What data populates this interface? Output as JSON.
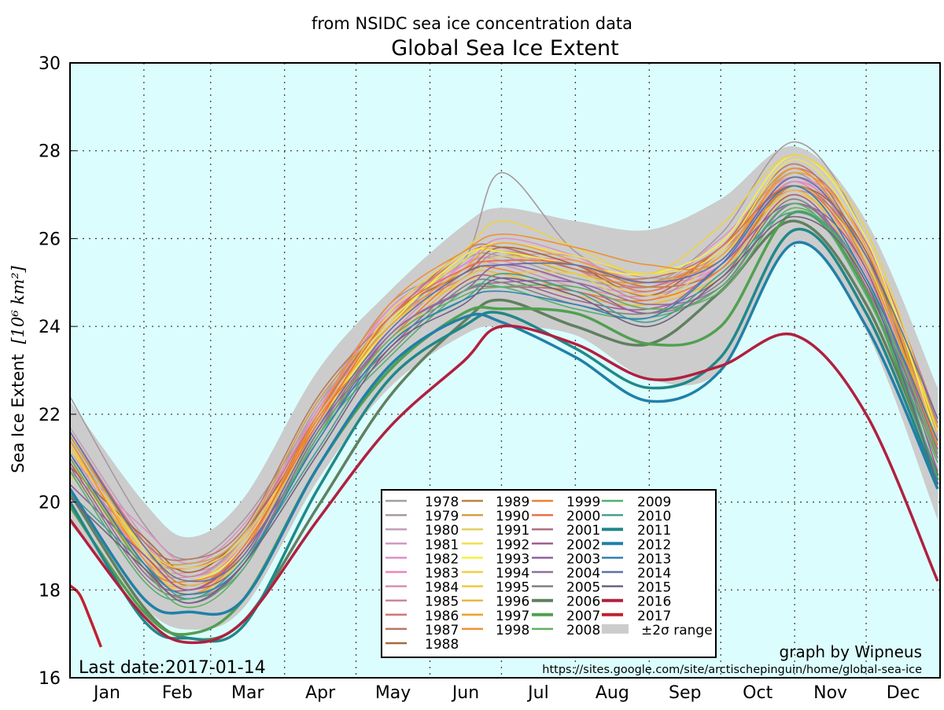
{
  "chart_data": {
    "type": "line",
    "title": "Global Sea Ice Extent",
    "subtitle": "from NSIDC sea ice concentration data",
    "ylabel": "Sea Ice Extent",
    "ylabel_unit": "[10⁶ km²]",
    "xlabel": "",
    "x_tick_labels": [
      "Jan",
      "Feb",
      "Mar",
      "Apr",
      "May",
      "Jun",
      "Jul",
      "Aug",
      "Sep",
      "Oct",
      "Nov",
      "Dec"
    ],
    "y_ticks": [
      16,
      18,
      20,
      22,
      24,
      26,
      28,
      30
    ],
    "ylim": [
      16,
      30
    ],
    "grid": true,
    "legend_position": "lower-center-right",
    "background_color": "#dcfdfd",
    "annotation_last_date": "Last date:2017-01-14",
    "credit": "graph by Wipneus",
    "source_url": "https://sites.google.com/site/arctischepinguin/home/global-sea-ice",
    "x": [
      "01-01",
      "02-01",
      "02-20",
      "03-15",
      "04-15",
      "05-15",
      "06-15",
      "07-01",
      "08-01",
      "09-01",
      "10-01",
      "11-01",
      "12-01",
      "12-31"
    ],
    "sigma_band": {
      "name": "±2σ range",
      "color": "#cccccc",
      "upper": [
        22.3,
        20.0,
        19.2,
        20.1,
        23.0,
        24.8,
        26.3,
        26.7,
        26.4,
        26.2,
        26.9,
        28.1,
        26.4,
        22.6
      ],
      "lower": [
        19.5,
        17.6,
        17.1,
        17.6,
        20.5,
        22.6,
        23.8,
        24.0,
        23.8,
        22.8,
        23.0,
        25.9,
        23.9,
        19.6
      ]
    },
    "series": [
      {
        "name": "1978",
        "color": "#a0a0a0",
        "values": [
          21.4,
          18.9,
          18.5,
          19.2,
          22.2,
          24.0,
          25.5,
          25.6,
          25.1,
          24.9,
          25.6,
          27.5,
          25.4,
          21.6
        ]
      },
      {
        "name": "1979",
        "color": "#a8989f",
        "values": [
          22.4,
          19.5,
          18.7,
          19.6,
          22.1,
          24.5,
          25.5,
          27.5,
          25.7,
          25.0,
          26.1,
          28.2,
          26.0,
          21.4
        ]
      },
      {
        "name": "1980",
        "color": "#c0a0b4",
        "values": [
          21.7,
          19.2,
          18.3,
          19.2,
          22.2,
          24.4,
          25.4,
          25.6,
          25.6,
          25.1,
          25.5,
          27.4,
          25.7,
          21.8
        ]
      },
      {
        "name": "1981",
        "color": "#d098c4",
        "values": [
          21.3,
          18.8,
          18.4,
          19.1,
          22.1,
          23.9,
          25.4,
          25.5,
          25.0,
          24.8,
          25.5,
          27.4,
          25.3,
          21.5
        ]
      },
      {
        "name": "1982",
        "color": "#e090c4",
        "values": [
          21.0,
          19.4,
          18.6,
          19.5,
          22.0,
          24.4,
          25.4,
          26.0,
          25.6,
          24.9,
          26.0,
          27.4,
          25.9,
          21.3
        ]
      },
      {
        "name": "1983",
        "color": "#e888c0",
        "values": [
          21.6,
          19.1,
          18.2,
          19.1,
          22.1,
          24.3,
          25.3,
          25.5,
          25.5,
          25.0,
          25.4,
          27.3,
          25.6,
          21.7
        ]
      },
      {
        "name": "1984",
        "color": "#d890b0",
        "values": [
          21.2,
          18.7,
          18.3,
          19.0,
          22.0,
          23.8,
          25.3,
          25.4,
          24.9,
          24.7,
          25.4,
          27.3,
          25.2,
          21.4
        ]
      },
      {
        "name": "1985",
        "color": "#c88898",
        "values": [
          20.7,
          19.1,
          18.3,
          19.2,
          21.7,
          24.1,
          25.1,
          25.7,
          25.3,
          24.6,
          25.7,
          27.1,
          25.6,
          21.0
        ]
      },
      {
        "name": "1986",
        "color": "#d07878",
        "values": [
          21.5,
          19.0,
          18.5,
          19.3,
          22.0,
          24.2,
          25.6,
          25.8,
          25.3,
          24.9,
          25.8,
          27.6,
          25.9,
          21.9
        ]
      },
      {
        "name": "1987",
        "color": "#b87860",
        "values": [
          21.6,
          19.1,
          18.7,
          19.4,
          22.4,
          24.2,
          25.7,
          25.8,
          25.3,
          25.1,
          25.8,
          27.7,
          25.6,
          21.8
        ]
      },
      {
        "name": "1988",
        "color": "#a86838",
        "values": [
          20.8,
          19.2,
          18.4,
          19.3,
          21.8,
          24.2,
          25.2,
          25.8,
          25.4,
          24.7,
          25.8,
          27.2,
          25.7,
          21.1
        ]
      },
      {
        "name": "1989",
        "color": "#c08040",
        "values": [
          21.5,
          19.0,
          18.1,
          19.0,
          22.0,
          24.2,
          25.2,
          25.4,
          25.4,
          24.9,
          25.3,
          27.2,
          25.5,
          21.6
        ]
      },
      {
        "name": "1990",
        "color": "#d0a040",
        "values": [
          21.5,
          19.0,
          18.6,
          19.3,
          22.3,
          24.1,
          25.6,
          25.7,
          25.2,
          25.0,
          25.7,
          27.6,
          25.5,
          21.7
        ]
      },
      {
        "name": "1991",
        "color": "#e0d060",
        "values": [
          20.6,
          19.0,
          18.2,
          19.1,
          21.6,
          24.0,
          25.0,
          25.6,
          25.2,
          24.5,
          25.6,
          27.0,
          25.5,
          20.9
        ]
      },
      {
        "name": "1992",
        "color": "#f0e050",
        "values": [
          21.3,
          18.9,
          18.0,
          19.0,
          21.9,
          24.1,
          25.5,
          25.9,
          25.6,
          25.2,
          25.7,
          27.8,
          25.8,
          21.6
        ]
      },
      {
        "name": "1993",
        "color": "#f8f040",
        "values": [
          21.0,
          18.6,
          18.2,
          19.0,
          21.8,
          24.0,
          25.6,
          25.7,
          25.4,
          25.2,
          25.9,
          27.9,
          26.0,
          21.4
        ]
      },
      {
        "name": "1994",
        "color": "#f0d040",
        "values": [
          21.2,
          19.0,
          18.5,
          19.2,
          21.8,
          24.3,
          25.7,
          26.4,
          25.8,
          25.2,
          26.3,
          27.9,
          26.2,
          21.6
        ]
      },
      {
        "name": "1995",
        "color": "#f0c840",
        "values": [
          21.3,
          18.8,
          17.9,
          18.8,
          21.8,
          24.0,
          25.0,
          25.2,
          25.2,
          24.7,
          25.1,
          27.0,
          25.3,
          21.4
        ]
      },
      {
        "name": "1996",
        "color": "#e8b848",
        "values": [
          21.0,
          18.5,
          18.1,
          18.8,
          21.8,
          23.6,
          25.1,
          25.2,
          24.7,
          24.5,
          25.2,
          27.1,
          25.0,
          21.2
        ]
      },
      {
        "name": "1997",
        "color": "#f0a030",
        "values": [
          20.9,
          18.8,
          18.0,
          18.9,
          21.9,
          24.0,
          25.3,
          25.9,
          25.5,
          25.0,
          25.6,
          27.5,
          25.8,
          21.2
        ]
      },
      {
        "name": "1998",
        "color": "#f09030",
        "values": [
          21.4,
          18.7,
          17.9,
          18.9,
          22.0,
          24.5,
          25.7,
          26.1,
          25.8,
          25.4,
          25.5,
          27.6,
          25.4,
          21.3
        ]
      },
      {
        "name": "1999",
        "color": "#f08030",
        "values": [
          21.1,
          18.6,
          18.2,
          18.9,
          21.9,
          23.7,
          25.2,
          25.3,
          24.8,
          24.6,
          25.3,
          27.2,
          25.1,
          21.3
        ]
      },
      {
        "name": "2000",
        "color": "#e87048",
        "values": [
          20.4,
          18.8,
          18.0,
          19.0,
          21.8,
          24.2,
          25.3,
          25.5,
          25.4,
          24.8,
          25.8,
          27.2,
          25.3,
          20.7
        ]
      },
      {
        "name": "2001",
        "color": "#b07080",
        "values": [
          21.0,
          18.5,
          17.8,
          18.6,
          21.5,
          23.8,
          24.8,
          24.9,
          24.8,
          24.3,
          24.9,
          26.8,
          25.0,
          21.1
        ]
      },
      {
        "name": "2002",
        "color": "#a06090",
        "values": [
          20.9,
          18.4,
          18.0,
          18.7,
          21.7,
          23.5,
          25.0,
          25.1,
          24.6,
          24.4,
          25.1,
          27.0,
          24.9,
          21.1
        ]
      },
      {
        "name": "2003",
        "color": "#9060a8",
        "values": [
          20.4,
          18.8,
          18.0,
          18.9,
          21.4,
          23.8,
          24.8,
          25.4,
          25.0,
          24.3,
          25.4,
          26.8,
          25.3,
          20.7
        ]
      },
      {
        "name": "2004",
        "color": "#9070a0",
        "values": [
          21.1,
          18.6,
          17.7,
          18.6,
          21.6,
          23.8,
          24.8,
          25.0,
          25.0,
          24.5,
          24.9,
          26.8,
          25.1,
          21.2
        ]
      },
      {
        "name": "2005",
        "color": "#808080",
        "values": [
          20.8,
          18.3,
          17.9,
          18.6,
          21.6,
          23.4,
          24.9,
          25.0,
          24.5,
          24.3,
          25.0,
          26.9,
          24.8,
          21.0
        ]
      },
      {
        "name": "2006",
        "color": "#608060",
        "thick": true,
        "values": [
          20.2,
          17.6,
          16.9,
          17.3,
          19.9,
          22.4,
          24.1,
          24.6,
          24.0,
          23.6,
          24.8,
          26.4,
          24.5,
          20.6
        ]
      },
      {
        "name": "2007",
        "color": "#50a050",
        "thick": true,
        "values": [
          19.9,
          17.5,
          17.0,
          17.8,
          20.8,
          23.0,
          24.3,
          24.4,
          24.3,
          23.6,
          24.0,
          26.6,
          24.8,
          20.5
        ]
      },
      {
        "name": "2008",
        "color": "#60b060",
        "values": [
          21.0,
          18.5,
          17.6,
          18.5,
          21.5,
          23.7,
          24.7,
          24.9,
          24.9,
          24.4,
          24.8,
          26.7,
          25.0,
          21.1
        ]
      },
      {
        "name": "2009",
        "color": "#50b070",
        "values": [
          20.7,
          18.2,
          17.8,
          18.5,
          21.5,
          23.3,
          24.8,
          24.9,
          24.4,
          24.2,
          24.9,
          26.8,
          24.7,
          20.9
        ]
      },
      {
        "name": "2010",
        "color": "#40a090",
        "values": [
          20.2,
          18.6,
          17.8,
          18.7,
          21.2,
          23.6,
          24.6,
          25.2,
          24.8,
          24.1,
          25.2,
          26.6,
          25.1,
          20.5
        ]
      },
      {
        "name": "2011",
        "color": "#208888",
        "thick": true,
        "values": [
          20.0,
          17.3,
          16.9,
          17.2,
          20.3,
          22.8,
          24.0,
          24.3,
          23.5,
          22.6,
          23.3,
          26.2,
          24.3,
          20.4
        ]
      },
      {
        "name": "2012",
        "color": "#2080a8",
        "thick": true,
        "values": [
          20.3,
          17.8,
          17.5,
          17.8,
          20.8,
          23.1,
          24.2,
          24.1,
          23.3,
          22.3,
          23.0,
          25.9,
          24.0,
          20.3
        ]
      },
      {
        "name": "2013",
        "color": "#3080b8",
        "values": [
          21.1,
          18.6,
          17.9,
          18.6,
          21.4,
          23.6,
          24.6,
          24.8,
          24.5,
          24.2,
          25.4,
          27.2,
          25.1,
          21.4
        ]
      },
      {
        "name": "2014",
        "color": "#6070a8",
        "values": [
          21.6,
          19.0,
          18.2,
          18.8,
          21.7,
          23.9,
          25.2,
          25.4,
          25.4,
          25.0,
          25.5,
          27.4,
          25.6,
          21.9
        ]
      },
      {
        "name": "2015",
        "color": "#706080",
        "values": [
          20.1,
          18.5,
          17.7,
          18.6,
          21.1,
          23.5,
          24.5,
          25.1,
          24.7,
          24.0,
          25.1,
          26.5,
          25.0,
          20.4
        ]
      },
      {
        "name": "2016",
        "color": "#b02040",
        "thick": true,
        "values": [
          19.6,
          17.4,
          16.8,
          17.3,
          19.6,
          21.7,
          23.2,
          24.0,
          23.6,
          22.8,
          23.1,
          23.8,
          22.0,
          18.2
        ]
      },
      {
        "name": "2017",
        "color": "#c02030",
        "thick": true,
        "x": [
          "01-01",
          "01-05",
          "01-09",
          "01-14"
        ],
        "values": [
          18.1,
          17.9,
          17.4,
          16.7
        ]
      }
    ]
  }
}
